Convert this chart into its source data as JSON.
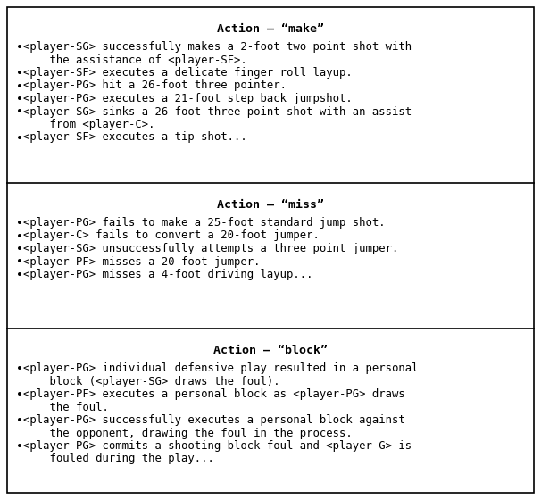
{
  "sections": [
    {
      "title": "Action – “make”",
      "lines": [
        {
          "bullet": true,
          "text": "<player-SG> successfully makes a 2-foot two point shot with"
        },
        {
          "bullet": false,
          "text": "    the assistance of <player-SF>."
        },
        {
          "bullet": true,
          "text": "<player-SF> executes a delicate finger roll layup."
        },
        {
          "bullet": true,
          "text": "<player-PG> hit a 26-foot three pointer."
        },
        {
          "bullet": true,
          "text": "<player-PG> executes a 21-foot step back jumpshot."
        },
        {
          "bullet": true,
          "text": "<player-SG> sinks a 26-foot three-point shot with an assist"
        },
        {
          "bullet": false,
          "text": "    from <player-C>."
        },
        {
          "bullet": true,
          "text": "<player-SF> executes a tip shot..."
        }
      ]
    },
    {
      "title": "Action – “miss”",
      "lines": [
        {
          "bullet": true,
          "text": "<player-PG> fails to make a 25-foot standard jump shot."
        },
        {
          "bullet": true,
          "text": "<player-C> fails to convert a 20-foot jumper."
        },
        {
          "bullet": true,
          "text": "<player-SG> unsuccessfully attempts a three point jumper."
        },
        {
          "bullet": true,
          "text": "<player-PF> misses a 20-foot jumper."
        },
        {
          "bullet": true,
          "text": "<player-PG> misses a 4-foot driving layup..."
        }
      ]
    },
    {
      "title": "Action – “block”",
      "lines": [
        {
          "bullet": true,
          "text": "<player-PG> individual defensive play resulted in a personal"
        },
        {
          "bullet": false,
          "text": "    block (<player-SG> draws the foul)."
        },
        {
          "bullet": true,
          "text": "<player-PF> executes a personal block as <player-PG> draws"
        },
        {
          "bullet": false,
          "text": "    the foul."
        },
        {
          "bullet": true,
          "text": "<player-PG> successfully executes a personal block against"
        },
        {
          "bullet": false,
          "text": "    the opponent, drawing the foul in the process."
        },
        {
          "bullet": true,
          "text": "<player-PG> commits a shooting block foul and <player-G> is"
        },
        {
          "bullet": false,
          "text": "    fouled during the play..."
        }
      ]
    }
  ],
  "bg_color": "#ffffff",
  "border_color": "#000000",
  "title_fontsize": 9.5,
  "body_fontsize": 8.8,
  "font_family": "DejaVu Sans Mono",
  "fig_width": 6.06,
  "fig_height": 5.6,
  "dpi": 100
}
